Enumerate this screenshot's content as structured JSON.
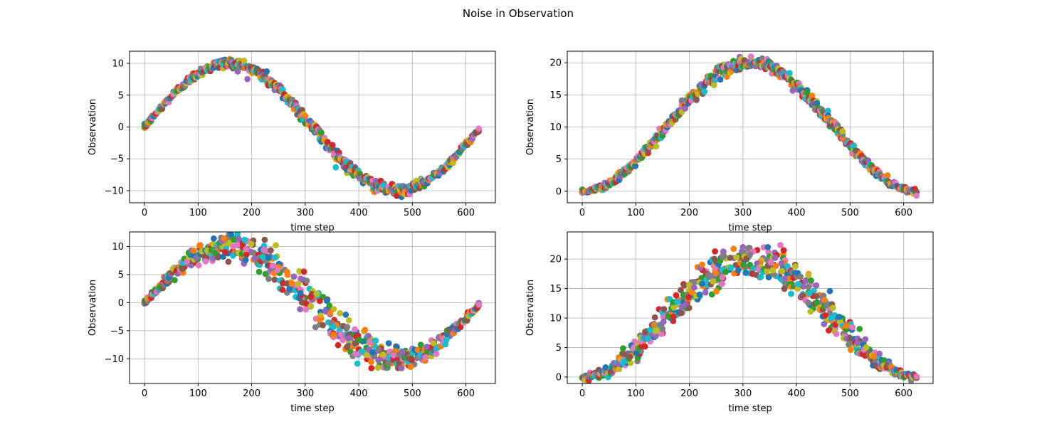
{
  "figure": {
    "title": "Noise in Observation"
  },
  "palette": [
    "#1f77b4",
    "#ff7f0e",
    "#2ca02c",
    "#d62728",
    "#9467bd",
    "#8c564b",
    "#e377c2",
    "#7f7f7f",
    "#bcbd22",
    "#17becf"
  ],
  "chart_data": [
    {
      "type": "scatter",
      "xlabel": "time step",
      "ylabel": "Observation",
      "xlim": [
        -28,
        655
      ],
      "ylim": [
        -11.9,
        11.9
      ],
      "xticks": [
        0,
        100,
        200,
        300,
        400,
        500,
        600
      ],
      "yticks": [
        -10,
        -5,
        0,
        5,
        10
      ],
      "grid": true,
      "curve": "10*sin(2*pi*t/628)",
      "noise_std": 0.35,
      "band_slope": 0.0,
      "x_range": [
        0,
        625
      ],
      "x_step": 3,
      "samples_per_step": 3
    },
    {
      "type": "scatter",
      "xlabel": "time step",
      "ylabel": "Observation",
      "xlim": [
        -28,
        655
      ],
      "ylim": [
        -1.8,
        21.8
      ],
      "xticks": [
        0,
        100,
        200,
        300,
        400,
        500,
        600
      ],
      "yticks": [
        0,
        5,
        10,
        15,
        20
      ],
      "grid": true,
      "curve": "10*(1-cos(2*pi*t/628))",
      "noise_std": 0.35,
      "band_slope": 0.0,
      "x_range": [
        0,
        625
      ],
      "x_step": 3,
      "samples_per_step": 3
    },
    {
      "type": "scatter",
      "xlabel": "time step",
      "ylabel": "Observation",
      "xlim": [
        -28,
        655
      ],
      "ylim": [
        -14.4,
        12.6
      ],
      "xticks": [
        0,
        100,
        200,
        300,
        400,
        500,
        600
      ],
      "yticks": [
        -10,
        -5,
        0,
        5,
        10
      ],
      "grid": true,
      "curve": "10*sin(2*pi*t/628)",
      "noise_std": 0.45,
      "band_slope": -0.024,
      "x_range": [
        0,
        625
      ],
      "x_step": 3,
      "samples_per_step": 3
    },
    {
      "type": "scatter",
      "xlabel": "time step",
      "ylabel": "Observation",
      "xlim": [
        -28,
        655
      ],
      "ylim": [
        -1.1,
        24.6
      ],
      "xticks": [
        0,
        100,
        200,
        300,
        400,
        500,
        600
      ],
      "yticks": [
        0,
        5,
        10,
        15,
        20
      ],
      "grid": true,
      "curve": "10*(1-cos(2*pi*t/628))",
      "noise_std": 0.45,
      "band_slope": -0.024,
      "x_range": [
        0,
        625
      ],
      "x_step": 3,
      "samples_per_step": 3
    }
  ]
}
